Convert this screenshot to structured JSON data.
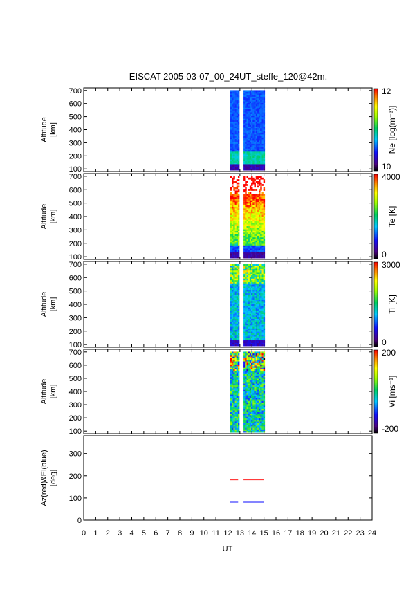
{
  "title": "EISCAT 2005-03-07_00_24UT_steffe_120@42m.",
  "chart_data": {
    "type": "heatmap",
    "title": "EISCAT 2005-03-07_00_24UT_steffe_120@42m.",
    "xlabel": "UT",
    "xlim": [
      0,
      24
    ],
    "xticks": [
      "0",
      "1",
      "2",
      "3",
      "4",
      "5",
      "6",
      "7",
      "8",
      "9",
      "10",
      "11",
      "12",
      "13",
      "14",
      "15",
      "16",
      "17",
      "18",
      "19",
      "20",
      "21",
      "22",
      "23",
      "24"
    ],
    "data_intervals_ut": [
      [
        12.2,
        12.85
      ],
      [
        13.3,
        15.0
      ]
    ],
    "panels": [
      {
        "type": "heatmap",
        "ylabel": [
          "Altitude",
          "[km]"
        ],
        "ylim": [
          80,
          720
        ],
        "yticks": [
          100,
          200,
          300,
          400,
          500,
          600,
          700
        ],
        "colorbar_label": "Ne [log(m⁻³)]",
        "colorbar_ticks": [
          "12",
          "10"
        ],
        "colorbar_range": [
          10,
          12
        ],
        "colormap": "rainbow"
      },
      {
        "type": "heatmap",
        "ylabel": [
          "Altitude",
          "[km]"
        ],
        "ylim": [
          80,
          720
        ],
        "yticks": [
          100,
          200,
          300,
          400,
          500,
          600,
          700
        ],
        "colorbar_label": "Te [K]",
        "colorbar_ticks": [
          "4000",
          "0"
        ],
        "colorbar_range": [
          0,
          4000
        ],
        "colormap": "rainbow"
      },
      {
        "type": "heatmap",
        "ylabel": [
          "Altitude",
          "[km]"
        ],
        "ylim": [
          80,
          720
        ],
        "yticks": [
          100,
          200,
          300,
          400,
          500,
          600,
          700
        ],
        "colorbar_label": "Ti [K]",
        "colorbar_ticks": [
          "3000",
          "0"
        ],
        "colorbar_range": [
          0,
          3000
        ],
        "colormap": "rainbow"
      },
      {
        "type": "heatmap",
        "ylabel": [
          "Altitude",
          "[km]"
        ],
        "ylim": [
          80,
          720
        ],
        "yticks": [
          100,
          200,
          300,
          400,
          500,
          600,
          700
        ],
        "colorbar_label": "Vi [ms⁻¹]",
        "colorbar_ticks": [
          "200",
          "-200"
        ],
        "colorbar_range": [
          -200,
          200
        ],
        "colormap": "rainbow"
      },
      {
        "type": "line",
        "ylabel": [
          "Az(red)&El(blue)",
          "[deg]"
        ],
        "ylim": [
          0,
          380
        ],
        "yticks": [
          0,
          100,
          200,
          300
        ],
        "series": [
          {
            "name": "Az",
            "color": "#ff3b3b",
            "segments": [
              {
                "x": [
                  12.2,
                  12.85
                ],
                "y": [
                  182,
                  182
                ]
              },
              {
                "x": [
                  13.3,
                  15.0
                ],
                "y": [
                  182,
                  182
                ]
              }
            ]
          },
          {
            "name": "El",
            "color": "#3b3bff",
            "segments": [
              {
                "x": [
                  12.2,
                  12.85
                ],
                "y": [
                  81,
                  81
                ]
              },
              {
                "x": [
                  13.3,
                  15.0
                ],
                "y": [
                  81,
                  81
                ]
              }
            ]
          }
        ]
      }
    ]
  }
}
